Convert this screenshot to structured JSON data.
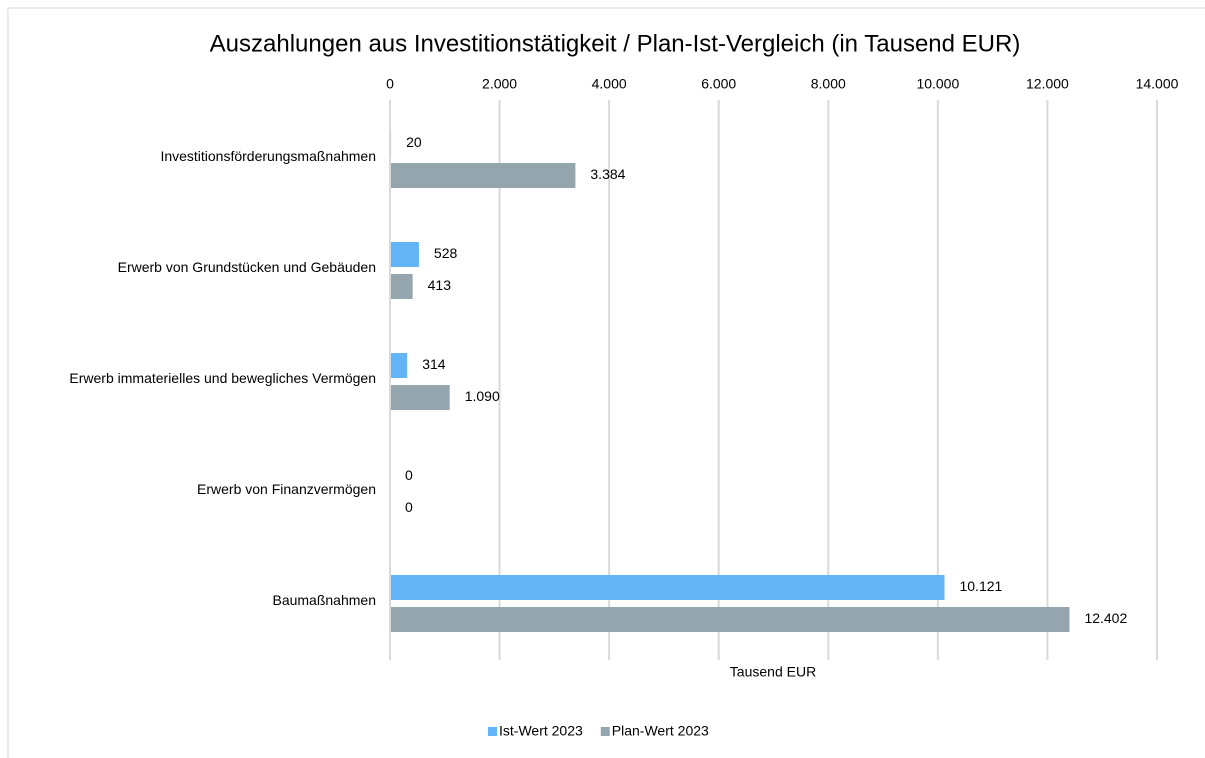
{
  "chart_data": {
    "type": "bar",
    "orientation": "horizontal",
    "title": "Auszahlungen aus Investitionstätigkeit / Plan-Ist-Vergleich (in Tausend EUR)",
    "xlabel": "Tausend EUR",
    "categories": [
      "Investitionsförderungsmaßnahmen",
      "Erwerb von Grundstücken und Gebäuden",
      "Erwerb immaterielles und bewegliches Vermögen",
      "Erwerb von Finanzvermögen",
      "Baumaßnahmen"
    ],
    "series": [
      {
        "name": "Ist-Wert 2023",
        "color": "#63b4f5",
        "values": [
          20,
          528,
          314,
          0,
          10121
        ],
        "value_labels": [
          "20",
          "528",
          "314",
          "0",
          "10.121"
        ]
      },
      {
        "name": "Plan-Wert 2023",
        "color": "#95a5ad",
        "values": [
          3384,
          413,
          1090,
          0,
          12402
        ],
        "value_labels": [
          "3.384",
          "413",
          "1.090",
          "0",
          "12.402"
        ]
      }
    ],
    "xlim": [
      0,
      14000
    ],
    "xticks": [
      0,
      {
        "value": 2000,
        "label": "2.000"
      },
      {
        "value": 4000,
        "label": "4.000"
      },
      {
        "value": 6000,
        "label": "6.000"
      },
      {
        "value": 8000,
        "label": "8.000"
      },
      {
        "value": 10000,
        "label": "10.000"
      },
      {
        "value": 12000,
        "label": "12.000"
      },
      {
        "value": 14000,
        "label": "14.000"
      }
    ],
    "grid": true,
    "legend": "bottom"
  }
}
